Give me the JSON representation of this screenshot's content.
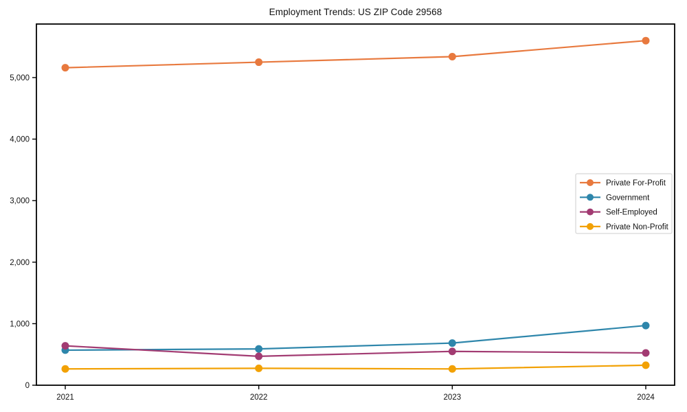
{
  "chart_data": {
    "type": "line",
    "title": "Employment Trends: US ZIP Code 29568",
    "xlabel": "",
    "ylabel": "",
    "x": [
      2021,
      2022,
      2023,
      2024
    ],
    "x_tick_labels": [
      "2021",
      "2022",
      "2023",
      "2024"
    ],
    "y_ticks": [
      0,
      1000,
      2000,
      3000,
      4000,
      5000
    ],
    "y_tick_labels": [
      "0",
      "1,000",
      "2,000",
      "3,000",
      "4,000",
      "5,000"
    ],
    "ylim": [
      0,
      5870
    ],
    "grid": false,
    "legend_position": "center-right",
    "marker": "circle",
    "series": [
      {
        "name": "Private For-Profit",
        "color": "#E8793E",
        "values": [
          5160,
          5250,
          5340,
          5600
        ]
      },
      {
        "name": "Government",
        "color": "#2E86AB",
        "values": [
          570,
          590,
          685,
          970
        ]
      },
      {
        "name": "Self-Employed",
        "color": "#A23B72",
        "values": [
          640,
          470,
          550,
          525
        ]
      },
      {
        "name": "Private Non-Profit",
        "color": "#F2A104",
        "values": [
          265,
          275,
          265,
          325
        ]
      }
    ],
    "colors": {
      "spine": "#000000",
      "tick_label": "#111111",
      "legend_border": "#cccccc",
      "background": "#ffffff"
    }
  }
}
